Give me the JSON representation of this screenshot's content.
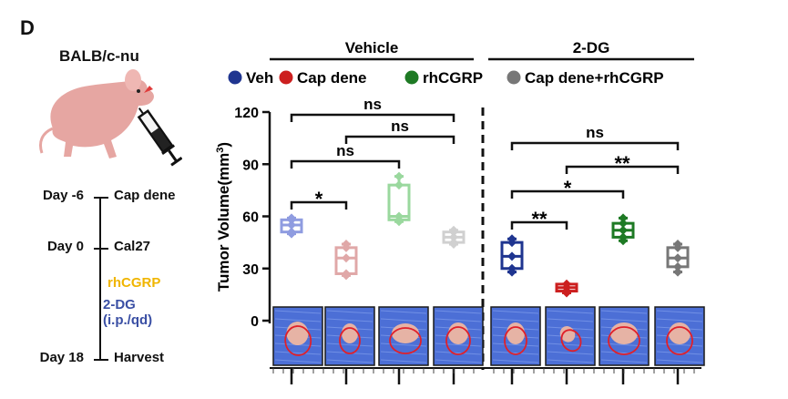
{
  "panel_letter": "D",
  "strain": "BALB/c-nu",
  "timeline": {
    "events": [
      {
        "day": "Day -6",
        "event": "Cap dene"
      },
      {
        "day": "Day 0",
        "event": "Cal27"
      },
      {
        "day": "Day 18",
        "event": "Harvest"
      }
    ],
    "treatment_rhcgrp": "rhCGRP",
    "treatment_2dg_line1": "2-DG",
    "treatment_2dg_line2": "(i.p./qd)",
    "rh_color": "#f0b500",
    "dg_color": "#3a4fa4"
  },
  "icons": [
    "mouse-icon",
    "syringe-icon"
  ],
  "chart_data": {
    "type": "box",
    "ylabel": "Tumor Volume(mm",
    "ylabel_sup": "3",
    "ylabel_close": ")",
    "ylim": [
      0,
      120
    ],
    "yticks": [
      "0",
      "30",
      "60",
      "90",
      "120"
    ],
    "groups": [
      {
        "name": "Vehicle",
        "count": 4
      },
      {
        "name": "2-DG",
        "count": 4
      }
    ],
    "legend": [
      {
        "name": "Veh",
        "color": "#1f3590"
      },
      {
        "name": "Cap dene",
        "color": "#cc1f1f"
      },
      {
        "name": "rhCGRP",
        "color": "#1e7a24"
      },
      {
        "name": "Cap dene+rhCGRP",
        "color": "#777777"
      }
    ],
    "boxes": [
      {
        "group": "Vehicle",
        "series": "Veh",
        "color": "#8f9ce0",
        "min": 50,
        "q1": 51,
        "median": 55,
        "q3": 58,
        "max": 59
      },
      {
        "group": "Vehicle",
        "series": "Cap dene",
        "color": "#e0a8a8",
        "min": 26,
        "q1": 27,
        "median": 36,
        "q3": 42,
        "max": 44
      },
      {
        "group": "Vehicle",
        "series": "rhCGRP",
        "color": "#9ad89e",
        "min": 57,
        "q1": 58,
        "median": 60,
        "q3": 78,
        "max": 83
      },
      {
        "group": "Vehicle",
        "series": "Cap dene+rhCGRP",
        "color": "#d0d0d0",
        "min": 44,
        "q1": 45,
        "median": 48,
        "q3": 51,
        "max": 52
      },
      {
        "group": "2-DG",
        "series": "Veh",
        "color": "#1f3590",
        "min": 28,
        "q1": 30,
        "median": 37,
        "q3": 45,
        "max": 47
      },
      {
        "group": "2-DG",
        "series": "Cap dene",
        "color": "#cc1f1f",
        "min": 16,
        "q1": 17,
        "median": 19,
        "q3": 21,
        "max": 21
      },
      {
        "group": "2-DG",
        "series": "rhCGRP",
        "color": "#1e7a24",
        "min": 46,
        "q1": 48,
        "median": 52,
        "q3": 56,
        "max": 59
      },
      {
        "group": "2-DG",
        "series": "Cap dene+rhCGRP",
        "color": "#777777",
        "min": 28,
        "q1": 31,
        "median": 36,
        "q3": 42,
        "max": 44
      }
    ],
    "significance": [
      {
        "from": 0,
        "to": 3,
        "label": "ns",
        "level": 4
      },
      {
        "from": 1,
        "to": 3,
        "label": "ns",
        "level": 3
      },
      {
        "from": 0,
        "to": 2,
        "label": "ns",
        "level": 2
      },
      {
        "from": 0,
        "to": 1,
        "label": "*",
        "level": 1
      },
      {
        "from": 4,
        "to": 7,
        "label": "ns",
        "level": 3
      },
      {
        "from": 5,
        "to": 7,
        "label": "**",
        "level": 2
      },
      {
        "from": 4,
        "to": 6,
        "label": "*",
        "level": 1
      },
      {
        "from": 4,
        "to": 5,
        "label": "**",
        "level": 0
      }
    ]
  }
}
